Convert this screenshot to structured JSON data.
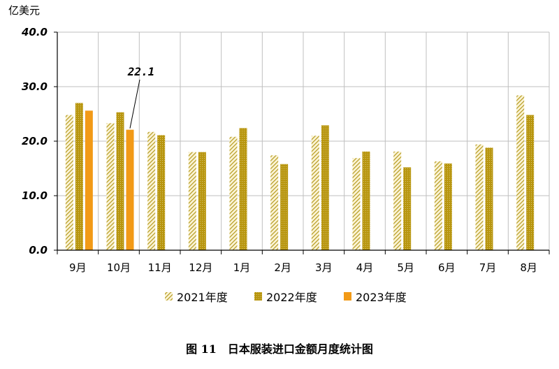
{
  "chart_data": {
    "type": "bar",
    "unit_label": "亿美元",
    "categories": [
      "9月",
      "10月",
      "11月",
      "12月",
      "1月",
      "2月",
      "3月",
      "4月",
      "5月",
      "6月",
      "7月",
      "8月"
    ],
    "series": [
      {
        "name": "2021年度",
        "values": [
          24.8,
          23.3,
          21.7,
          18.0,
          20.8,
          17.4,
          21.0,
          16.9,
          18.1,
          16.3,
          19.4,
          28.4
        ]
      },
      {
        "name": "2022年度",
        "values": [
          27.0,
          25.3,
          21.1,
          18.0,
          22.4,
          15.8,
          22.9,
          18.1,
          15.2,
          15.9,
          18.8,
          24.8
        ]
      },
      {
        "name": "2023年度",
        "values": [
          25.6,
          22.1,
          null,
          null,
          null,
          null,
          null,
          null,
          null,
          null,
          null,
          null
        ]
      }
    ],
    "ylim": [
      0,
      40
    ],
    "yticks": [
      "0.0",
      "10.0",
      "20.0",
      "30.0",
      "40.0"
    ],
    "grid": true,
    "legend_position": "bottom",
    "annotation": {
      "text": "22.1",
      "category": "10月",
      "series": "2023年度"
    },
    "caption": "图 11　日本服装进口金额月度统计图",
    "colors": {
      "series_2021": "#b59a1f",
      "series_2022": "#b8960f",
      "series_2023": "#f29a17",
      "grid": "#bfbfbf",
      "axis": "#000000"
    }
  }
}
